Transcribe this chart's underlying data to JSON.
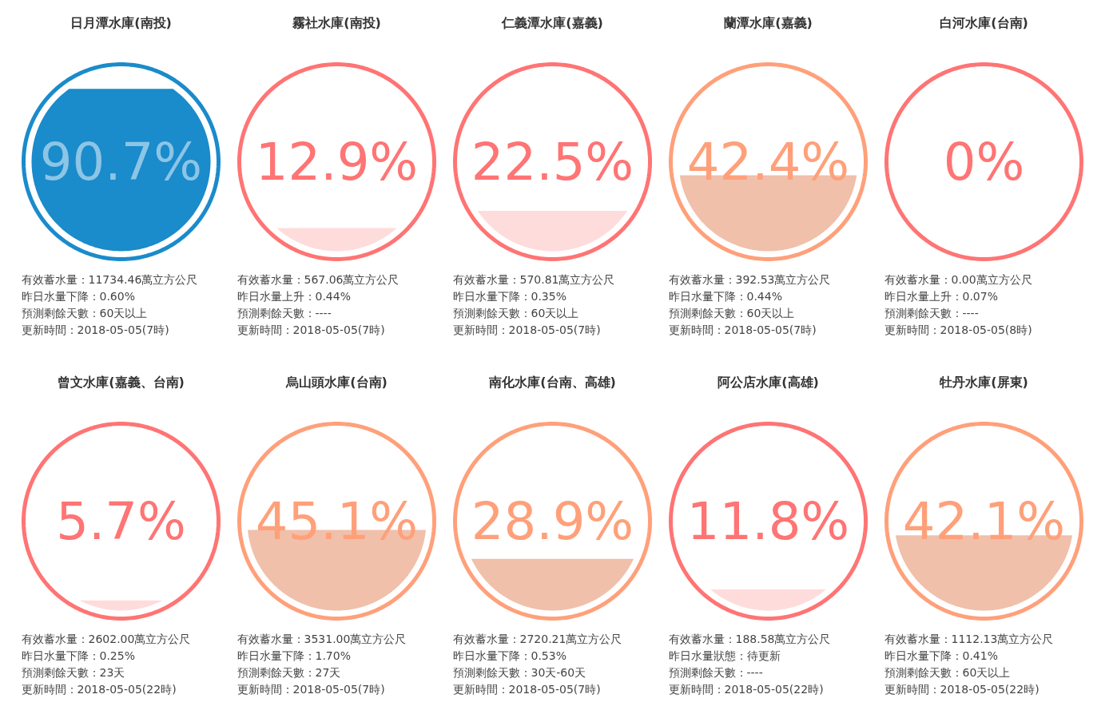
{
  "chart_data": [
    {
      "type": "other",
      "title": "日月潭水庫(南投)",
      "values": [
        90.7
      ],
      "value_labels": [
        "90.7%"
      ],
      "color": "#1a8bcb",
      "colors": [
        "#1a8bcb"
      ],
      "annotations": [
        "有效蓄水量：11734.46萬立方公尺",
        "昨日水量下降：0.60%",
        "預測剩餘天數：60天以上",
        "更新時間：2018-05-05(7時)"
      ]
    },
    {
      "type": "other",
      "title": "霧社水庫(南投)",
      "values": [
        12.9
      ],
      "value_labels": [
        "12.9%"
      ],
      "color": "#ff7474",
      "colors": [
        "#ffdcdc"
      ],
      "annotations": [
        "有效蓄水量：567.06萬立方公尺",
        "昨日水量上升：0.44%",
        "預測剩餘天數：----",
        "更新時間：2018-05-05(7時)"
      ]
    },
    {
      "type": "other",
      "title": "仁義潭水庫(嘉義)",
      "values": [
        22.5
      ],
      "value_labels": [
        "22.5%"
      ],
      "color": "#ff7474",
      "colors": [
        "#ffdcdc"
      ],
      "annotations": [
        "有效蓄水量：570.81萬立方公尺",
        "昨日水量下降：0.35%",
        "預測剩餘天數：60天以上",
        "更新時間：2018-05-05(7時)"
      ]
    },
    {
      "type": "other",
      "title": "蘭潭水庫(嘉義)",
      "values": [
        42.4
      ],
      "value_labels": [
        "42.4%"
      ],
      "color": "#ffa07a",
      "colors": [
        "#f0c0aa"
      ],
      "annotations": [
        "有效蓄水量：392.53萬立方公尺",
        "昨日水量下降：0.44%",
        "預測剩餘天數：60天以上",
        "更新時間：2018-05-05(7時)"
      ]
    },
    {
      "type": "other",
      "title": "白河水庫(台南)",
      "values": [
        0
      ],
      "value_labels": [
        "0%"
      ],
      "color": "#ff7474",
      "colors": [
        "#ffdcdc"
      ],
      "annotations": [
        "有效蓄水量：0.00萬立方公尺",
        "昨日水量上升：0.07%",
        "預測剩餘天數：----",
        "更新時間：2018-05-05(8時)"
      ]
    },
    {
      "type": "other",
      "title": "曾文水庫(嘉義、台南)",
      "values": [
        5.7
      ],
      "value_labels": [
        "5.7%"
      ],
      "color": "#ff7474",
      "colors": [
        "#ffdcdc"
      ],
      "annotations": [
        "有效蓄水量：2602.00萬立方公尺",
        "昨日水量下降：0.25%",
        "預測剩餘天數：23天",
        "更新時間：2018-05-05(22時)"
      ]
    },
    {
      "type": "other",
      "title": "烏山頭水庫(台南)",
      "values": [
        45.1
      ],
      "value_labels": [
        "45.1%"
      ],
      "color": "#ffa07a",
      "colors": [
        "#f0c0aa"
      ],
      "annotations": [
        "有效蓄水量：3531.00萬立方公尺",
        "昨日水量下降：1.70%",
        "預測剩餘天數：27天",
        "更新時間：2018-05-05(7時)"
      ]
    },
    {
      "type": "other",
      "title": "南化水庫(台南、高雄)",
      "values": [
        28.9
      ],
      "value_labels": [
        "28.9%"
      ],
      "color": "#ffa07a",
      "colors": [
        "#f0c0aa"
      ],
      "annotations": [
        "有效蓄水量：2720.21萬立方公尺",
        "昨日水量下降：0.53%",
        "預測剩餘天數：30天-60天",
        "更新時間：2018-05-05(7時)"
      ]
    },
    {
      "type": "other",
      "title": "阿公店水庫(高雄)",
      "values": [
        11.8
      ],
      "value_labels": [
        "11.8%"
      ],
      "color": "#ff7474",
      "colors": [
        "#ffdcdc"
      ],
      "annotations": [
        "有效蓄水量：188.58萬立方公尺",
        "昨日水量狀態：待更新",
        "預測剩餘天數：----",
        "更新時間：2018-05-05(22時)"
      ]
    },
    {
      "type": "other",
      "title": "牡丹水庫(屏東)",
      "values": [
        42.1
      ],
      "value_labels": [
        "42.1%"
      ],
      "color": "#ffa07a",
      "colors": [
        "#f0c0aa"
      ],
      "annotations": [
        "有效蓄水量：1112.13萬立方公尺",
        "昨日水量下降：0.41%",
        "預測剩餘天數：60天以上",
        "更新時間：2018-05-05(22時)"
      ]
    }
  ]
}
